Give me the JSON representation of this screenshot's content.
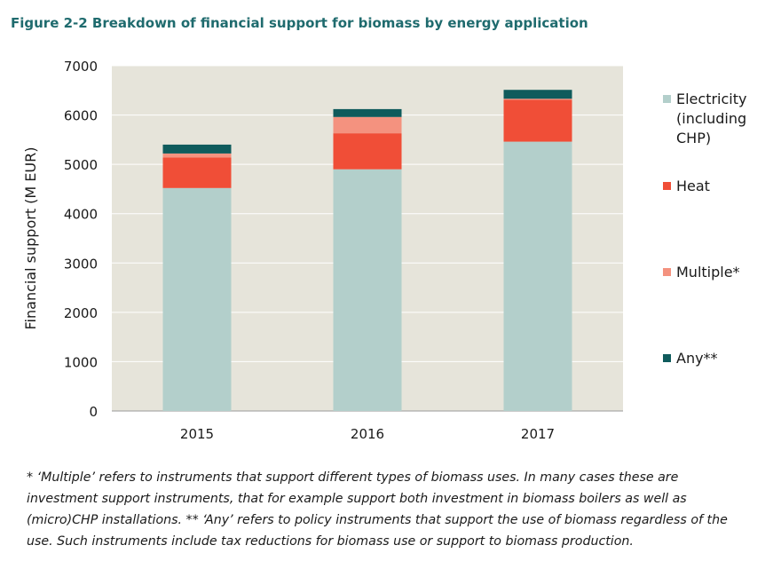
{
  "figure_title": "Figure 2-2 Breakdown of financial support for biomass by energy application",
  "footnote_lines": [
    "* ‘Multiple’ refers to instruments that support different types of biomass uses. In many cases these are",
    "investment support instruments, that for example support both investment in biomass boilers as well as",
    "(micro)CHP installations. ** ‘Any’ refers to policy instruments that support the use of biomass regardless of the",
    "use. Such instruments include tax reductions for biomass use or support to biomass production."
  ],
  "chart_data": {
    "type": "bar",
    "stacked": true,
    "categories": [
      "2015",
      "2016",
      "2017"
    ],
    "ylabel": "Financial support (M EUR)",
    "xlabel": "",
    "ylim": [
      0,
      7000
    ],
    "yticks": [
      "0",
      "1000",
      "2000",
      "3000",
      "4000",
      "5000",
      "6000",
      "7000"
    ],
    "grid": true,
    "plot_background": "#e6e4da",
    "legend_position": "right",
    "series": [
      {
        "name": "Electricity (including CHP)",
        "legend_lines": [
          "Electricity",
          "(including",
          "CHP)"
        ],
        "color": "#b3cfcb",
        "values": [
          4520,
          4900,
          5460
        ]
      },
      {
        "name": "Heat",
        "legend_lines": [
          "Heat"
        ],
        "color": "#f04e37",
        "values": [
          620,
          730,
          850
        ]
      },
      {
        "name": "Multiple*",
        "legend_lines": [
          "Multiple*"
        ],
        "color": "#f4927f",
        "values": [
          80,
          330,
          20
        ]
      },
      {
        "name": "Any**",
        "legend_lines": [
          "Any**"
        ],
        "color": "#0f5b5c",
        "values": [
          180,
          160,
          180
        ]
      }
    ]
  }
}
